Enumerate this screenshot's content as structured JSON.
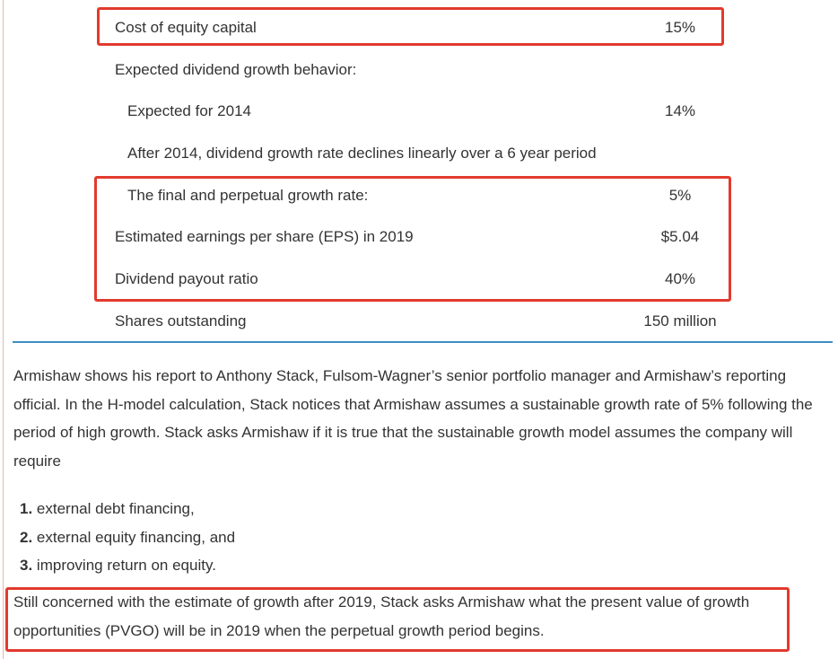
{
  "table": {
    "rows": [
      {
        "label": "Cost of equity capital",
        "value": "15%"
      },
      {
        "label": "Expected dividend growth behavior:",
        "value": ""
      },
      {
        "label": "Expected for 2014",
        "value": "14%"
      },
      {
        "label": "After 2014, dividend growth rate declines linearly over a 6 year period",
        "value": ""
      },
      {
        "label": "The final and perpetual growth rate:",
        "value": "5%"
      },
      {
        "label": "Estimated earnings per share (EPS) in 2019",
        "value": "$5.04"
      },
      {
        "label": "Dividend payout ratio",
        "value": "40%"
      },
      {
        "label": "Shares outstanding",
        "value": "150 million"
      }
    ]
  },
  "body": {
    "paragraph": "Armishaw shows his report to Anthony Stack, Fulsom-Wagner’s senior portfolio manager and Armishaw’s reporting official. In the H-model calculation, Stack notices that Armishaw assumes a sustainable growth rate of 5% following the period of high growth. Stack asks Armishaw if it is true that the sustainable growth model assumes the company will require",
    "list": [
      {
        "num": "1.",
        "text": "external debt financing,"
      },
      {
        "num": "2.",
        "text": "external equity financing, and"
      },
      {
        "num": "3.",
        "text": "improving return on equity."
      }
    ],
    "closing": "Still concerned with the estimate of growth after 2019, Stack asks Armishaw what the present value of growth opportunities (PVGO) will be in 2019 when the perpetual growth period begins."
  },
  "colors": {
    "highlight_border": "#e23a2e",
    "divider": "#3b8fc4",
    "text": "#333333"
  }
}
